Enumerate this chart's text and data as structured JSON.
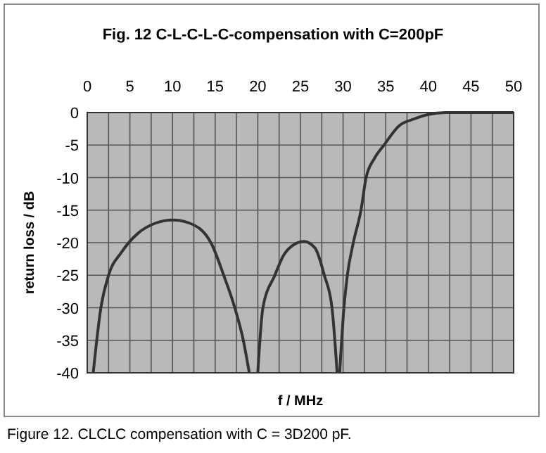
{
  "chart_data": {
    "type": "line",
    "title": "Fig. 12  C-L-C-L-C-compensation with C=200pF",
    "xlabel": "f / MHz",
    "ylabel": "return loss / dB",
    "annotations": [
      "Figure 12. CLCLC compensation with C = 3D200 pF."
    ],
    "x": [
      0.7,
      1.6,
      2.5,
      4,
      6,
      8,
      10,
      12,
      14.5,
      16,
      17.3,
      18.3,
      19,
      19.5,
      20,
      20.6,
      22,
      23,
      24,
      25.4,
      26.7,
      27.8,
      28.7,
      29.3,
      29.45,
      29.6,
      30.1,
      30.5,
      31.2,
      32.1,
      32.7,
      33.7,
      34.8,
      36.6,
      38.3,
      40,
      42,
      45,
      50
    ],
    "series": [
      {
        "color": "#333333",
        "values": [
          -40,
          -30,
          -25,
          -21.5,
          -18.5,
          -17,
          -16.5,
          -17,
          -20,
          -25,
          -30,
          -35,
          -40,
          null,
          -40,
          -30,
          -25,
          -22,
          -20.5,
          -19.8,
          -20.8,
          -25,
          -30,
          -40,
          null,
          -40,
          -30,
          -25,
          -20,
          -15,
          -10,
          -7,
          -5,
          -2,
          -1,
          -0.3,
          0,
          0,
          0
        ]
      }
    ],
    "xlim": [
      0,
      50
    ],
    "xticks": [
      0,
      {
        "value": 2.5,
        "label": null
      },
      5,
      {
        "value": 7.5,
        "label": null
      },
      10,
      {
        "value": 12.5,
        "label": null
      },
      15,
      {
        "value": 17.5,
        "label": null
      },
      20,
      {
        "value": 22.5,
        "label": null
      },
      25,
      {
        "value": 27.5,
        "label": null
      },
      30,
      {
        "value": 32.5,
        "label": null
      },
      35,
      {
        "value": 37.5,
        "label": null
      },
      40,
      {
        "value": 42.5,
        "label": null
      },
      45,
      {
        "value": 47.5,
        "label": null
      },
      50
    ],
    "ylim": [
      -40,
      0
    ],
    "yticks": [
      0,
      -5,
      -10,
      -15,
      -20,
      -25,
      -30,
      -35,
      -40
    ],
    "grid": true,
    "marker": "none",
    "line_style": "solid"
  }
}
